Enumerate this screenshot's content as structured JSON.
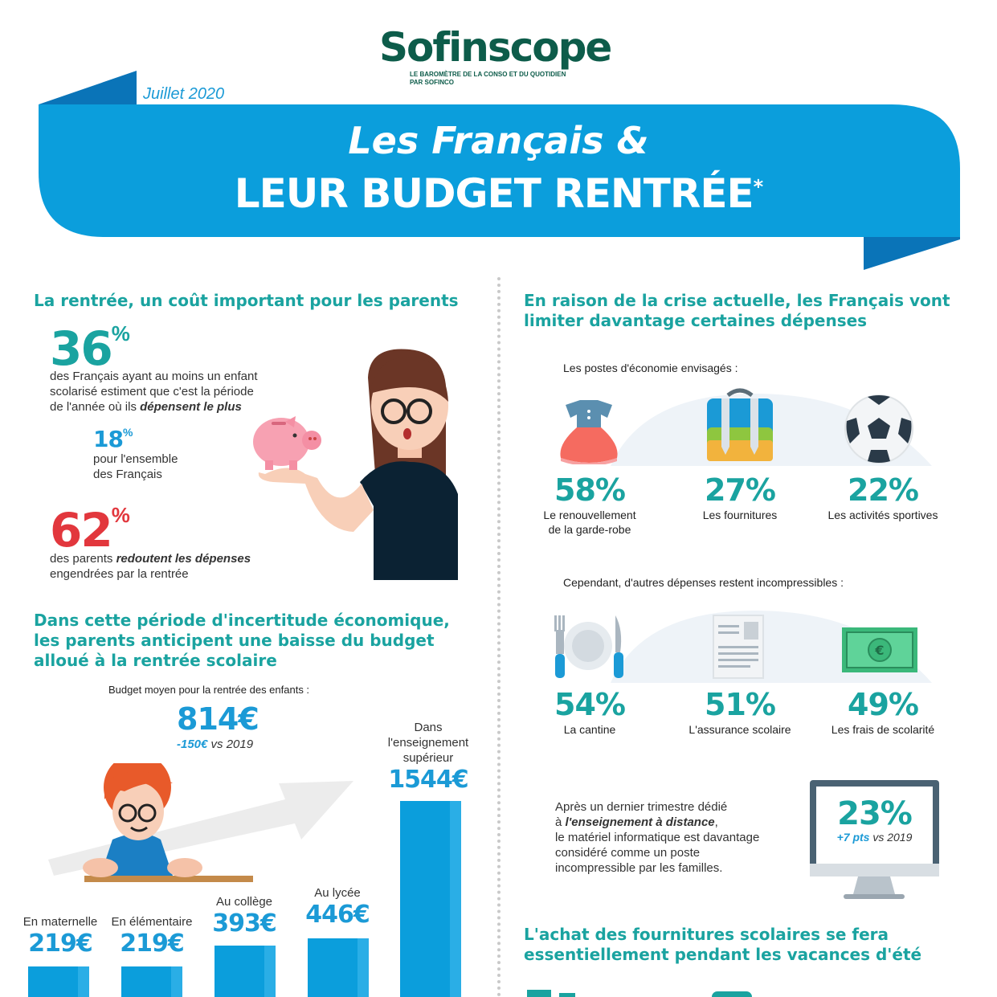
{
  "brand": {
    "logo": "Sofinscope",
    "tagline_1": "LE BAROMÈTRE DE LA CONSO ET DU QUOTIDIEN",
    "tagline_2": "PAR SOFINCO"
  },
  "header": {
    "date": "Juillet 2020",
    "title_1": "Les Français &",
    "title_2": "LEUR BUDGET RENTRÉE",
    "asterisk": "*"
  },
  "left": {
    "s1_title": "La rentrée, un coût important pour les parents",
    "stat1": {
      "value": "36",
      "unit": "%",
      "line1": "des Français ayant au moins un enfant",
      "line2": "scolarisé estiment que c'est la période",
      "line3": "de l'année où ils ",
      "line3_em": "dépensent le plus"
    },
    "stat2": {
      "value": "18",
      "unit": "%",
      "line1": "pour l'ensemble",
      "line2": "des Français"
    },
    "stat3": {
      "value": "62",
      "unit": "%",
      "line1": "des parents ",
      "line1_em": "redoutent les dépenses",
      "line2": "engendrées par la rentrée"
    },
    "s2_title_1": "Dans cette période d'incertitude économique,",
    "s2_title_2": "les parents anticipent une baisse du budget",
    "s2_title_3": "alloué à la rentrée scolaire",
    "budget_label": "Budget moyen pour la rentrée des enfants :",
    "budget_value": "814€",
    "budget_delta": "-150€",
    "budget_delta_suffix": " vs 2019",
    "bars": [
      {
        "label": "En maternelle",
        "value": "219€"
      },
      {
        "label": "En élémentaire",
        "value": "219€"
      },
      {
        "label": "Au collège",
        "value": "393€"
      },
      {
        "label": "Au lycée",
        "value": "446€"
      },
      {
        "label": "Dans l'enseignement supérieur",
        "label_1": "Dans",
        "label_2": "l'enseignement",
        "label_3": "supérieur",
        "value": "1544€"
      }
    ]
  },
  "right": {
    "s1_title_1": "En raison de la crise actuelle, les Français vont",
    "s1_title_2": "limiter davantage certaines dépenses",
    "econ_label": "Les postes d'économie envisagés :",
    "econ": [
      {
        "icon": "dress-icon",
        "pct": "58%",
        "label_1": "Le renouvellement",
        "label_2": "de la garde-robe"
      },
      {
        "icon": "backpack-icon",
        "pct": "27%",
        "label_1": "Les fournitures",
        "label_2": ""
      },
      {
        "icon": "soccer-ball-icon",
        "pct": "22%",
        "label_1": "Les activités sportives",
        "label_2": ""
      }
    ],
    "incomp_label": "Cependant, d'autres dépenses restent incompressibles :",
    "incomp": [
      {
        "icon": "plate-cutlery-icon",
        "pct": "54%",
        "label": "La cantine"
      },
      {
        "icon": "document-icon",
        "pct": "51%",
        "label": "L'assurance scolaire"
      },
      {
        "icon": "banknote-icon",
        "pct": "49%",
        "label": "Les frais de scolarité"
      }
    ],
    "remote_1": "Après un dernier trimestre dédié",
    "remote_2a": "à ",
    "remote_2_em": "l'enseignement à distance",
    "remote_2b": ",",
    "remote_3": "le matériel informatique est davantage",
    "remote_4": "considéré comme un poste",
    "remote_5": "incompressible par les familles.",
    "monitor_pct": "23%",
    "monitor_delta": "+7 pts",
    "monitor_delta_suffix": " vs 2019",
    "s2_title_1": "L'achat des fournitures scolaires se fera",
    "s2_title_2": "essentiellement pendant les vacances d'été"
  },
  "colors": {
    "teal": "#1aa3a0",
    "blue": "#1b9ad6",
    "red": "#e2373d",
    "banner": "#0b9edc",
    "logo": "#0d5c4a"
  }
}
